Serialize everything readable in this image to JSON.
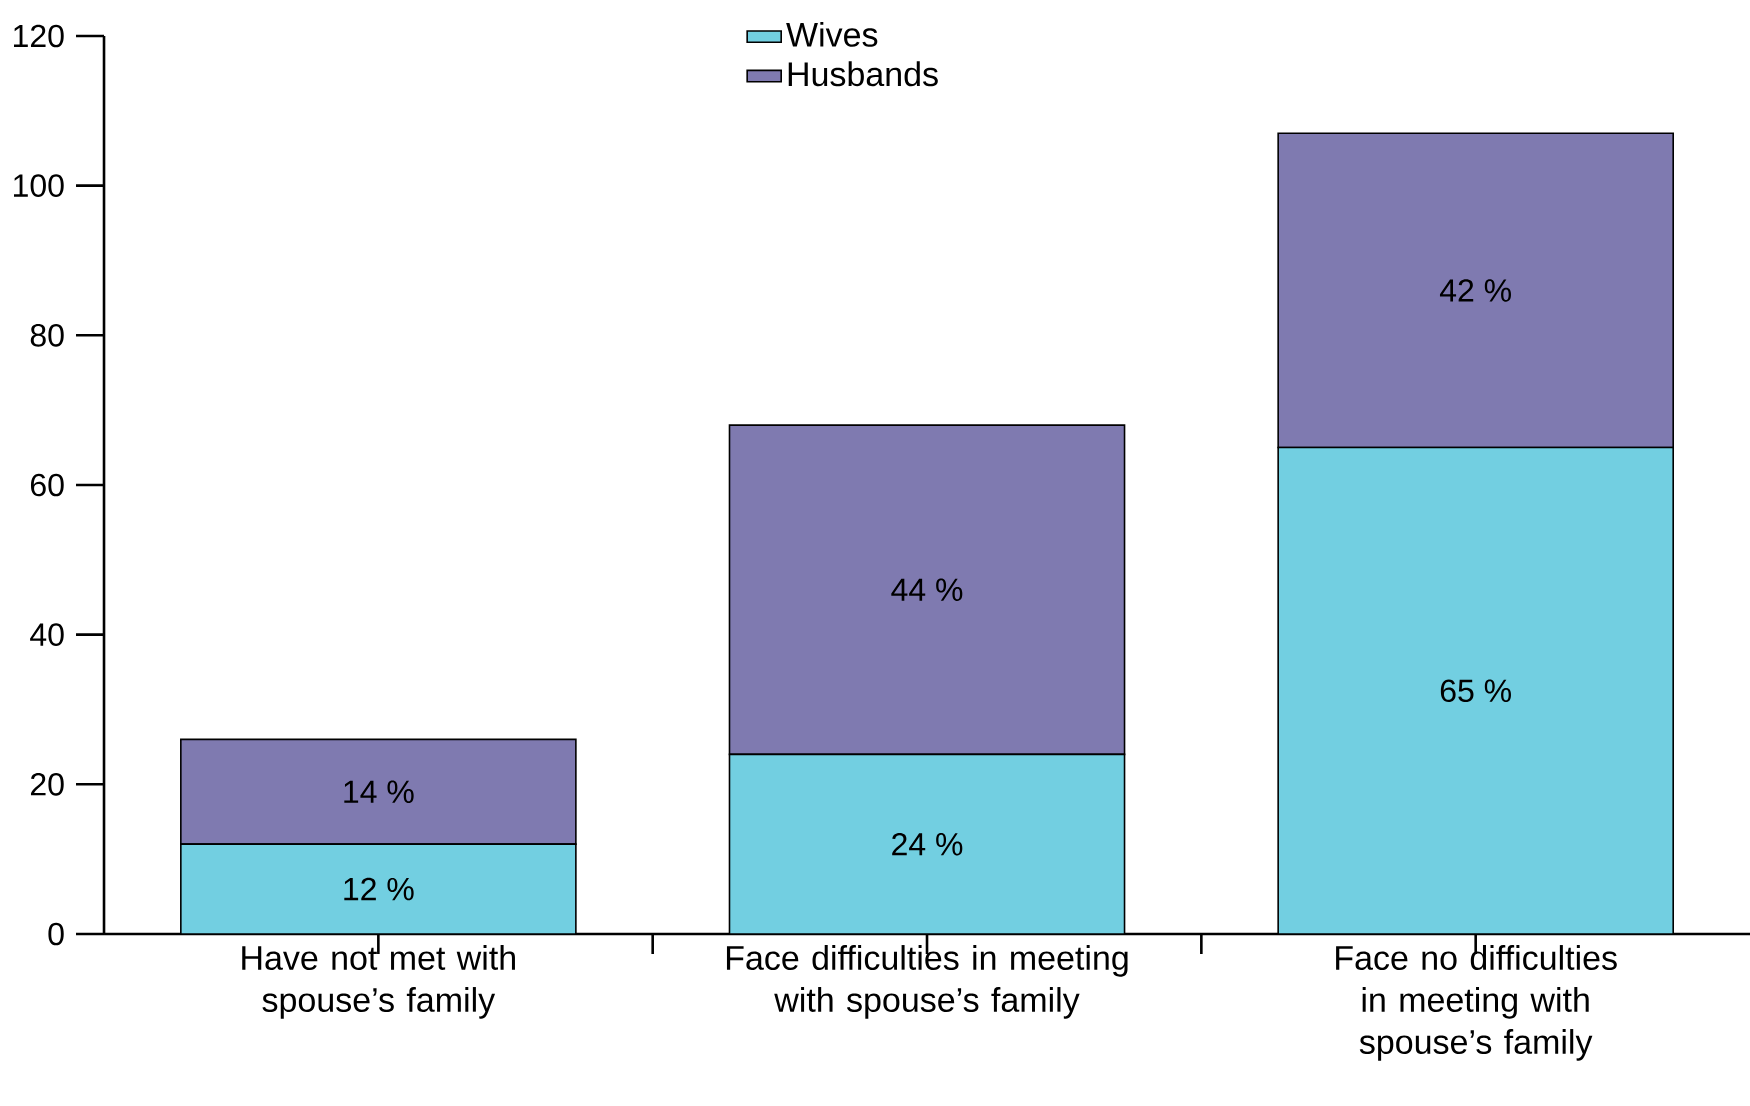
{
  "chart_data": {
    "type": "bar",
    "stacked": true,
    "categories": [
      "Have not met with spouse’s family",
      "Face difficulties in meeting with spouse’s family",
      "Face no difficulties in meeting with spouse’s family"
    ],
    "series": [
      {
        "name": "Wives",
        "color": "#72cfe1",
        "values": [
          12,
          24,
          65
        ],
        "value_labels": [
          "12 %",
          "24 %",
          "65 %"
        ]
      },
      {
        "name": "Husbands",
        "color": "#7f7ab0",
        "values": [
          14,
          44,
          42
        ],
        "value_labels": [
          "14 %",
          "44 %",
          "42 %"
        ]
      }
    ],
    "ylim": [
      0,
      120
    ],
    "yticks": [
      0,
      20,
      40,
      60,
      80,
      100,
      120
    ],
    "legend": "top"
  }
}
